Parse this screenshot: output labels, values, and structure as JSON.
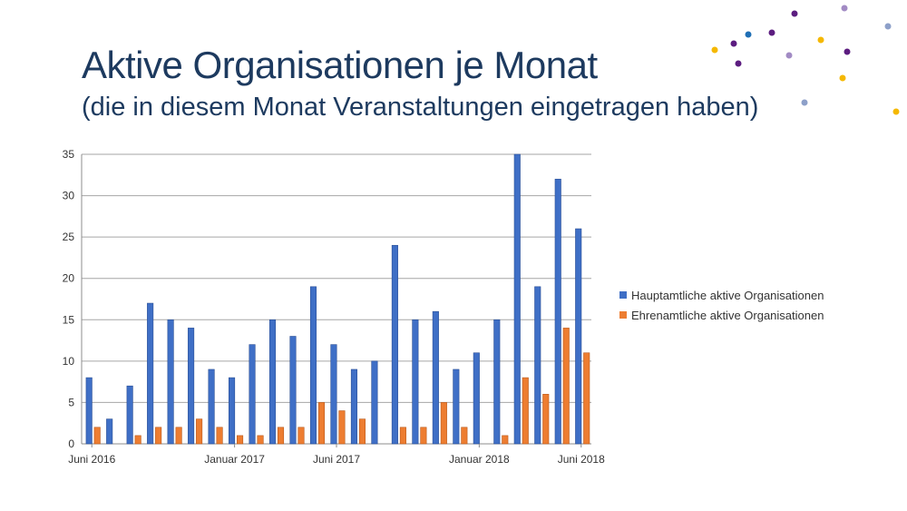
{
  "title": "Aktive Organisationen je Monat",
  "subtitle": "(die in diesem Monat Veranstaltungen eingetragen haben)",
  "colors": {
    "title": "#1d3a5f",
    "series_blue": "#3f6fc6",
    "series_orange": "#ed7d31",
    "dot_purple": "#5c1d80",
    "dot_lavender": "#a28bc4",
    "dot_yellow": "#f5b800",
    "dot_blue": "#1f6fb5",
    "dot_grayblue": "#8da0c9"
  },
  "decorative_dots": "dot-cluster",
  "legend": [
    {
      "label": "Hauptamtliche aktive Organisationen",
      "color": "#3f6fc6"
    },
    {
      "label": "Ehrenamtliche aktive Organisationen",
      "color": "#ed7d31"
    }
  ],
  "chart_data": {
    "type": "bar",
    "title": "Aktive Organisationen je Monat",
    "subtitle": "(die in diesem Monat Veranstaltungen eingetragen haben)",
    "xlabel": "",
    "ylabel": "",
    "ylim": [
      0,
      35
    ],
    "yticks": [
      0,
      5,
      10,
      15,
      20,
      25,
      30,
      35
    ],
    "grid": true,
    "legend_position": "right",
    "categories": [
      "Juni 2016",
      "",
      "",
      "",
      "",
      "",
      "",
      "Januar 2017",
      "",
      "",
      "",
      "",
      "Juni 2017",
      "",
      "",
      "",
      "",
      "",
      "",
      "Januar 2018",
      "",
      "",
      "",
      "",
      "Juni 2018"
    ],
    "x_tick_labels": [
      {
        "index": 0,
        "label": "Juni 2016"
      },
      {
        "index": 7,
        "label": "Januar 2017"
      },
      {
        "index": 12,
        "label": "Juni 2017"
      },
      {
        "index": 19,
        "label": "Januar 2018"
      },
      {
        "index": 24,
        "label": "Juni 2018"
      }
    ],
    "series": [
      {
        "name": "Hauptamtliche aktive Organisationen",
        "values": [
          8,
          3,
          7,
          17,
          15,
          14,
          9,
          8,
          12,
          15,
          13,
          19,
          12,
          9,
          10,
          24,
          15,
          16,
          9,
          11,
          15,
          35,
          19,
          32,
          26
        ]
      },
      {
        "name": "Ehrenamtliche aktive Organisationen",
        "values": [
          2,
          0,
          1,
          2,
          2,
          3,
          2,
          1,
          1,
          2,
          2,
          5,
          4,
          3,
          0,
          2,
          2,
          5,
          2,
          0,
          1,
          8,
          6,
          14,
          11
        ]
      }
    ]
  }
}
